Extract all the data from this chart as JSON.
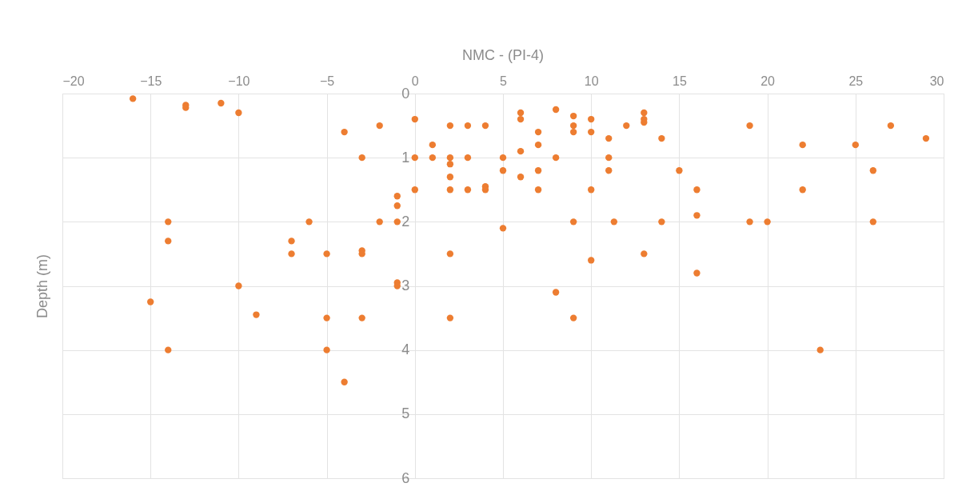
{
  "chart_data": {
    "type": "scatter",
    "title": "NMC - (PI-4)",
    "ylabel": "Depth (m)",
    "x": [
      -16,
      -13,
      -13,
      -11,
      -10,
      -4,
      -2,
      0,
      -3,
      0,
      -1,
      -1,
      -1,
      -2,
      -6,
      -14,
      -14,
      -7,
      -7,
      -5,
      -3,
      -3,
      -1,
      -1,
      -10,
      -15,
      -9,
      -5,
      -3,
      -14,
      -5,
      -4,
      0,
      2,
      3,
      4,
      6,
      6,
      7,
      8,
      9,
      9,
      9,
      10,
      10,
      11,
      12,
      13,
      13,
      13,
      14,
      1,
      7,
      1,
      2,
      2,
      3,
      5,
      6,
      8,
      11,
      2,
      5,
      6,
      7,
      11,
      15,
      2,
      3,
      4,
      4,
      7,
      10,
      5,
      9,
      11.3,
      14,
      2,
      10,
      13,
      8,
      2,
      9,
      19,
      22,
      25,
      27,
      29,
      26,
      16,
      22,
      16,
      19,
      20,
      26,
      16,
      23
    ],
    "series": [
      {
        "color": "#ed7d31",
        "values": [
          0.08,
          0.18,
          0.22,
          0.15,
          0.3,
          0.6,
          0.5,
          0.4,
          1,
          1,
          1.6,
          1.75,
          2,
          2,
          2,
          2,
          2.3,
          2.3,
          2.5,
          2.5,
          2.45,
          2.5,
          2.95,
          3,
          3,
          3.25,
          3.45,
          3.5,
          3.5,
          4,
          4,
          4.5,
          1.5,
          0.5,
          0.5,
          0.5,
          0.3,
          0.4,
          0.6,
          0.25,
          0.35,
          0.5,
          0.6,
          0.4,
          0.6,
          0.7,
          0.5,
          0.3,
          0.4,
          0.45,
          0.7,
          0.8,
          0.8,
          1,
          1,
          1.1,
          1,
          1,
          0.9,
          1,
          1,
          1.3,
          1.2,
          1.3,
          1.2,
          1.2,
          1.2,
          1.5,
          1.5,
          1.45,
          1.5,
          1.5,
          1.5,
          2.1,
          2,
          2,
          2,
          2.5,
          2.6,
          2.5,
          3.1,
          3.5,
          3.5,
          0.5,
          0.8,
          0.8,
          0.5,
          0.7,
          1.2,
          1.5,
          1.5,
          1.9,
          2,
          2,
          2,
          2.8,
          4
        ]
      }
    ],
    "xlim": [
      -20,
      30
    ],
    "xticks": [
      -20,
      -15,
      -10,
      -5,
      0,
      5,
      10,
      15,
      20,
      25,
      30
    ],
    "ylim": [
      6,
      0
    ],
    "yticks": [
      0,
      1,
      2,
      3,
      4,
      5,
      6
    ],
    "grid": true,
    "marker": "circle",
    "legend": false
  }
}
